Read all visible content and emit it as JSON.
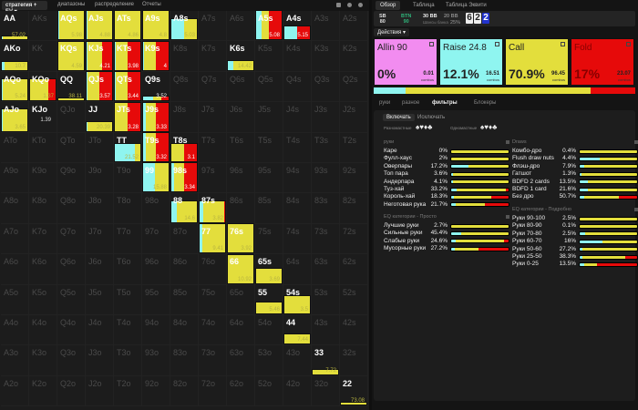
{
  "colors": {
    "allin": "#f28cf0",
    "raise": "#8ff5f0",
    "call": "#e3de3c",
    "fold": "#e60a0a"
  },
  "topbar": {
    "strategy_label": "стратегия + EV ▾",
    "menu": [
      "диапазоны",
      "распределение",
      "Отчеты"
    ]
  },
  "grid": {
    "rows": [
      [
        "AA",
        "AKs",
        "AQs",
        "AJs",
        "ATs",
        "A9s",
        "A8s",
        "A7s",
        "A6s",
        "A5s",
        "A4s",
        "A3s",
        "A2s"
      ],
      [
        "AKo",
        "KK",
        "KQs",
        "KJs",
        "KTs",
        "K9s",
        "K8s",
        "K7s",
        "K6s",
        "K5s",
        "K4s",
        "K3s",
        "K2s"
      ],
      [
        "AQo",
        "KQo",
        "QQ",
        "QJs",
        "QTs",
        "Q9s",
        "Q8s",
        "Q7s",
        "Q6s",
        "Q5s",
        "Q4s",
        "Q3s",
        "Q2s"
      ],
      [
        "AJo",
        "KJo",
        "QJo",
        "JJ",
        "JTs",
        "J9s",
        "J8s",
        "J7s",
        "J6s",
        "J5s",
        "J4s",
        "J3s",
        "J2s"
      ],
      [
        "ATo",
        "KTo",
        "QTo",
        "JTo",
        "TT",
        "T9s",
        "T8s",
        "T7s",
        "T6s",
        "T5s",
        "T4s",
        "T3s",
        "T2s"
      ],
      [
        "A9o",
        "K9o",
        "Q9o",
        "J9o",
        "T9o",
        "99",
        "98s",
        "97s",
        "96s",
        "95s",
        "94s",
        "93s",
        "92s"
      ],
      [
        "A8o",
        "K8o",
        "Q8o",
        "J8o",
        "T8o",
        "98o",
        "88",
        "87s",
        "86s",
        "85s",
        "84s",
        "83s",
        "82s"
      ],
      [
        "A7o",
        "K7o",
        "Q7o",
        "J7o",
        "T7o",
        "97o",
        "87o",
        "77",
        "76s",
        "75s",
        "74s",
        "73s",
        "72s"
      ],
      [
        "A6o",
        "K6o",
        "Q6o",
        "J6o",
        "T6o",
        "96o",
        "86o",
        "76o",
        "66",
        "65s",
        "64s",
        "63s",
        "62s"
      ],
      [
        "A5o",
        "K5o",
        "Q5o",
        "J5o",
        "T5o",
        "95o",
        "85o",
        "75o",
        "65o",
        "55",
        "54s",
        "53s",
        "52s"
      ],
      [
        "A4o",
        "K4o",
        "Q4o",
        "J4o",
        "T4o",
        "94o",
        "84o",
        "74o",
        "64o",
        "54o",
        "44",
        "43s",
        "42s"
      ],
      [
        "A3o",
        "K3o",
        "Q3o",
        "J3o",
        "T3o",
        "93o",
        "83o",
        "73o",
        "63o",
        "53o",
        "43o",
        "33",
        "32s"
      ],
      [
        "A2o",
        "K2o",
        "Q2o",
        "J2o",
        "T2o",
        "92o",
        "82o",
        "72o",
        "62o",
        "52o",
        "42o",
        "32o",
        "22"
      ]
    ],
    "hands": {
      "AA": {
        "mix": [
          0,
          0.02,
          0.98,
          0
        ],
        "freq": 0.1,
        "ev": "57.02"
      },
      "AQs": {
        "mix": [
          0,
          0.05,
          0.95,
          0
        ],
        "freq": 1,
        "ev": "5.98"
      },
      "AJs": {
        "mix": [
          0,
          0.02,
          0.98,
          0
        ],
        "freq": 1,
        "ev": "4.88"
      },
      "ATs": {
        "mix": [
          0,
          0,
          1,
          0
        ],
        "freq": 1,
        "ev": "4.86"
      },
      "A9s": {
        "mix": [
          0,
          0,
          1,
          0
        ],
        "freq": 1,
        "ev": "4.8"
      },
      "A8s": {
        "mix": [
          0,
          0.5,
          0.5,
          0
        ],
        "freq": 0.72,
        "ev": "5.03"
      },
      "A5s": {
        "mix": [
          0,
          0.22,
          0.28,
          0.5
        ],
        "freq": 1,
        "ev": "5.08"
      },
      "A4s": {
        "mix": [
          0,
          0.5,
          0,
          0.5
        ],
        "freq": 0.45,
        "ev": "5.15"
      },
      "AKo": {
        "mix": [
          0,
          0.1,
          0.9,
          0
        ],
        "freq": 0.28,
        "ev": "10.7"
      },
      "KQs": {
        "mix": [
          0,
          0,
          1,
          0
        ],
        "freq": 1,
        "ev": "4.59"
      },
      "KJs": {
        "mix": [
          0,
          0.05,
          0.55,
          0.4
        ],
        "freq": 1,
        "ev": "4.21"
      },
      "KTs": {
        "mix": [
          0,
          0.05,
          0.45,
          0.5
        ],
        "freq": 1,
        "ev": "3.98"
      },
      "K9s": {
        "mix": [
          0,
          0.05,
          0.45,
          0.5
        ],
        "freq": 1,
        "ev": "4"
      },
      "K6s": {
        "mix": [
          0,
          0.2,
          0.8,
          0
        ],
        "freq": 0.3,
        "ev": "14.42"
      },
      "AQo": {
        "mix": [
          0,
          0.04,
          0.96,
          0
        ],
        "freq": 0.75,
        "ev": "5.24"
      },
      "KQo": {
        "mix": [
          0,
          0,
          0.72,
          0.28
        ],
        "freq": 0.75,
        "ev": "1.37"
      },
      "QQ": {
        "mix": [
          0,
          0,
          1,
          0
        ],
        "freq": 0.06,
        "ev": "38.11"
      },
      "QJs": {
        "mix": [
          0,
          0.05,
          0.45,
          0.5
        ],
        "freq": 1,
        "ev": "3.57"
      },
      "QTs": {
        "mix": [
          0,
          0.05,
          0.45,
          0.5
        ],
        "freq": 1,
        "ev": "3.44"
      },
      "Q9s": {
        "mix": [
          0,
          0.4,
          0.3,
          0.3
        ],
        "freq": 0.12,
        "ev": "3.52"
      },
      "AJo": {
        "mix": [
          0,
          0.03,
          0.97,
          0
        ],
        "freq": 0.75,
        "ev": "3.65"
      },
      "KJo": {
        "mix": [
          0,
          0,
          0,
          0
        ],
        "freq": 0,
        "ev": "1.39"
      },
      "JJ": {
        "mix": [
          0,
          0.05,
          0.95,
          0
        ],
        "freq": 0.3,
        "ev": "20.39"
      },
      "JTs": {
        "mix": [
          0,
          0,
          0.5,
          0.5
        ],
        "freq": 1,
        "ev": "3.28"
      },
      "J9s": {
        "mix": [
          0,
          0.1,
          0.4,
          0.5
        ],
        "freq": 1,
        "ev": "3.33"
      },
      "TT": {
        "mix": [
          0,
          0.8,
          0.2,
          0
        ],
        "freq": 0.6,
        "ev": "21.52"
      },
      "T9s": {
        "mix": [
          0,
          0.1,
          0.4,
          0.5
        ],
        "freq": 1,
        "ev": "3.32"
      },
      "T8s": {
        "mix": [
          0,
          0,
          0.5,
          0.5
        ],
        "freq": 0.6,
        "ev": "3.1"
      },
      "99": {
        "mix": [
          0,
          0.45,
          0.55,
          0
        ],
        "freq": 1,
        "ev": "15.88"
      },
      "98s": {
        "mix": [
          0,
          0.1,
          0.4,
          0.5
        ],
        "freq": 1,
        "ev": "3.34"
      },
      "88": {
        "mix": [
          0,
          0.2,
          0.8,
          0
        ],
        "freq": 0.75,
        "ev": "14.6"
      },
      "87s": {
        "mix": [
          0,
          0.15,
          0.8,
          0.05
        ],
        "freq": 0.75,
        "ev": "3.82"
      },
      "77": {
        "mix": [
          0,
          0.1,
          0.9,
          0
        ],
        "freq": 1,
        "ev": "9.41"
      },
      "76s": {
        "mix": [
          0,
          0,
          1,
          0
        ],
        "freq": 1,
        "ev": "3.92"
      },
      "66": {
        "mix": [
          0,
          0,
          1,
          0
        ],
        "freq": 1,
        "ev": "10.92"
      },
      "65s": {
        "mix": [
          0,
          0,
          1,
          0
        ],
        "freq": 0.5,
        "ev": "3.69"
      },
      "55": {
        "mix": [
          0,
          0,
          1,
          0
        ],
        "freq": 0.4,
        "ev": "5.46"
      },
      "54s": {
        "mix": [
          0,
          0,
          1,
          0
        ],
        "freq": 0.6,
        "ev": "3.5"
      },
      "44": {
        "mix": [
          0,
          0,
          1,
          0
        ],
        "freq": 0.32,
        "ev": "7.44"
      },
      "33": {
        "mix": [
          0,
          0,
          1,
          0
        ],
        "freq": 0.16,
        "ev": "7.72"
      },
      "22": {
        "mix": [
          0,
          0,
          1,
          0
        ],
        "freq": 0.06,
        "ev": "73.08"
      }
    }
  },
  "right": {
    "tabs": [
      "Обзор",
      "Таблица",
      "Таблица Эквити"
    ],
    "info": {
      "p1": "SB",
      "p1v": "80",
      "p2": "BTN",
      "p2v": "90",
      "pot1": "30 BB",
      "pot2": "20 BB",
      "odds_label": "Шансы банка",
      "odds": "25%",
      "cards": [
        "6",
        "2",
        "2"
      ]
    },
    "actions_label": "Действия ▾",
    "actions": [
      {
        "name": "Allin 90",
        "pct": "0%",
        "combos": "0.01",
        "unit": "combos"
      },
      {
        "name": "Raise 24.8",
        "pct": "12.1%",
        "combos": "16.51",
        "unit": "combos"
      },
      {
        "name": "Call",
        "pct": "70.9%",
        "combos": "96.45",
        "unit": "combos"
      },
      {
        "name": "Fold",
        "pct": "17%",
        "combos": "23.07",
        "unit": "combos"
      }
    ],
    "summary": [
      0,
      0.121,
      0.709,
      0.17
    ],
    "subtabs": [
      "руки",
      "разное",
      "фильтры",
      "Блокеры"
    ],
    "include": "Включать",
    "exclude": "Исключать",
    "offsuit_label": "Разномастные",
    "suited_label": "Одномастные",
    "suits": "♠♥♦♣",
    "suits2": "♠♥♦♣",
    "sections": [
      {
        "title": "руки",
        "rows": [
          {
            "n": "Каре",
            "v": "0%",
            "m": [
              0,
              1,
              0
            ]
          },
          {
            "n": "Фулл-хаус",
            "v": "2%",
            "m": [
              0,
              1,
              0
            ]
          },
          {
            "n": "Оверпары",
            "v": "17.2%",
            "m": [
              0.3,
              0.7,
              0
            ]
          },
          {
            "n": "Топ пара",
            "v": "3.6%",
            "m": [
              0.03,
              0.97,
              0
            ]
          },
          {
            "n": "Андерпара",
            "v": "4.1%",
            "m": [
              0.03,
              0.97,
              0
            ]
          },
          {
            "n": "Туз-хай",
            "v": "33.2%",
            "m": [
              0.1,
              0.85,
              0.05
            ]
          },
          {
            "n": "Король-хай",
            "v": "18.3%",
            "m": [
              0.05,
              0.65,
              0.3
            ]
          },
          {
            "n": "Неготовая рука",
            "v": "21.7%",
            "m": [
              0.08,
              0.5,
              0.42
            ]
          }
        ]
      },
      {
        "title": "Draws",
        "rows": [
          {
            "n": "Комбо-дро",
            "v": "0.4%",
            "m": [
              0,
              1,
              0
            ]
          },
          {
            "n": "Flush draw nuts",
            "v": "4.4%",
            "m": [
              0.35,
              0.65,
              0
            ]
          },
          {
            "n": "Флэш-дро",
            "v": "7.9%",
            "m": [
              0.08,
              0.92,
              0
            ]
          },
          {
            "n": "Гатшот",
            "v": "1.3%",
            "m": [
              0.03,
              0.97,
              0
            ]
          },
          {
            "n": "BDFD 2 cards",
            "v": "13.5%",
            "m": [
              0.15,
              0.85,
              0
            ]
          },
          {
            "n": "BDFD 1 card",
            "v": "21.6%",
            "m": [
              0.15,
              0.85,
              0
            ]
          },
          {
            "n": "Без дро",
            "v": "50.7%",
            "m": [
              0.08,
              0.6,
              0.32
            ]
          }
        ]
      },
      {
        "title": "EQ категории - Просто",
        "rows": [
          {
            "n": "Лучшие руки",
            "v": "2.7%",
            "m": [
              0,
              1,
              0
            ]
          },
          {
            "n": "Сильные руки",
            "v": "45.4%",
            "m": [
              0.18,
              0.82,
              0
            ]
          },
          {
            "n": "Слабые руки",
            "v": "24.6%",
            "m": [
              0.08,
              0.84,
              0.08
            ]
          },
          {
            "n": "Мусорные руки",
            "v": "27.2%",
            "m": [
              0.06,
              0.41,
              0.53
            ]
          }
        ]
      },
      {
        "title": "EQ категории - Подробно",
        "rows": [
          {
            "n": "Руки 90-100",
            "v": "2.5%",
            "m": [
              0,
              1,
              0
            ]
          },
          {
            "n": "Руки 80-90",
            "v": "0.1%",
            "m": [
              0,
              1,
              0
            ]
          },
          {
            "n": "Руки 70-80",
            "v": "2.5%",
            "m": [
              0.1,
              0.9,
              0
            ]
          },
          {
            "n": "Руки 60-70",
            "v": "16%",
            "m": [
              0.4,
              0.6,
              0
            ]
          },
          {
            "n": "Руки 50-60",
            "v": "27.2%",
            "m": [
              0.05,
              0.95,
              0
            ]
          },
          {
            "n": "Руки 25-50",
            "v": "38.3%",
            "m": [
              0.04,
              0.76,
              0.2
            ]
          },
          {
            "n": "Руки 0-25",
            "v": "13.5%",
            "m": [
              0.08,
              0.22,
              0.7
            ]
          }
        ]
      }
    ]
  }
}
